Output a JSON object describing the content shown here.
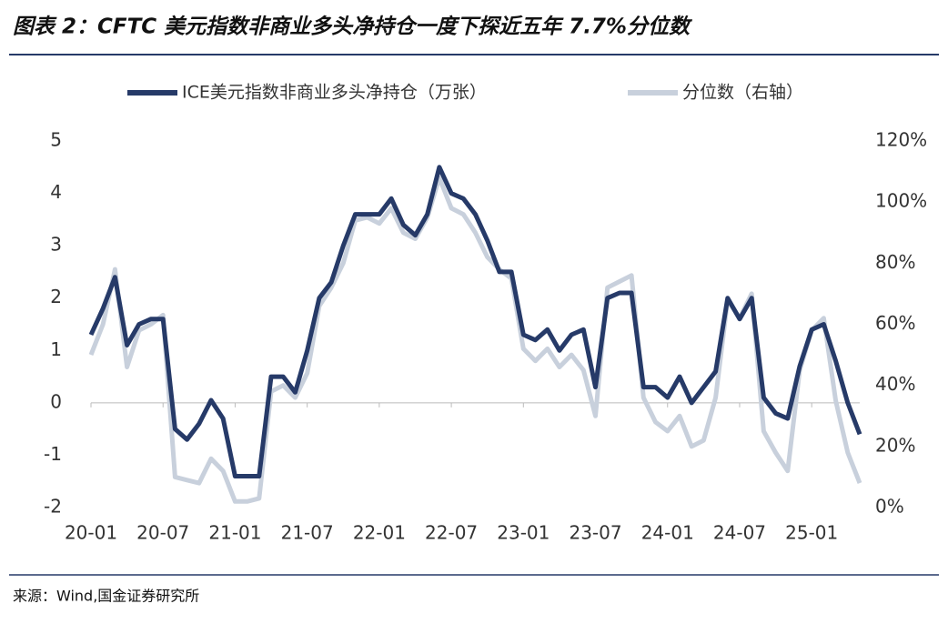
{
  "chart_data": {
    "type": "line",
    "title": "图表 2：CFTC 美元指数非商业多头净持仓一度下探近五年 7.7%分位数",
    "source": "来源：Wind,国金证券研究所",
    "categories": [
      "20-01",
      null,
      null,
      null,
      null,
      null,
      "20-07",
      null,
      null,
      null,
      null,
      null,
      "21-01",
      null,
      null,
      null,
      null,
      null,
      "21-07",
      null,
      null,
      null,
      null,
      null,
      "22-01",
      null,
      null,
      null,
      null,
      null,
      "22-07",
      null,
      null,
      null,
      null,
      null,
      "23-01",
      null,
      null,
      null,
      null,
      null,
      "23-07",
      null,
      null,
      null,
      null,
      null,
      "24-01",
      null,
      null,
      null,
      null,
      null,
      "24-07",
      null,
      null,
      null,
      null,
      null,
      "25-01",
      null,
      null,
      null,
      null
    ],
    "series": [
      {
        "name": "ICE美元指数非商业多头净持仓（万张）",
        "color": "#263a68",
        "values": [
          1.3,
          1.8,
          2.4,
          1.1,
          1.5,
          1.6,
          1.6,
          -0.5,
          -0.7,
          -0.4,
          0.05,
          -0.3,
          -1.4,
          -1.4,
          -1.4,
          0.5,
          0.5,
          0.2,
          1.0,
          2.0,
          2.3,
          3.0,
          3.6,
          3.6,
          3.6,
          3.9,
          3.4,
          3.2,
          3.6,
          4.5,
          4.0,
          3.9,
          3.6,
          3.1,
          2.5,
          2.5,
          1.3,
          1.2,
          1.4,
          1.0,
          1.3,
          1.4,
          0.3,
          2.0,
          2.1,
          2.1,
          0.3,
          0.3,
          0.1,
          0.5,
          0.0,
          0.3,
          0.6,
          2.0,
          1.6,
          2.0,
          0.1,
          -0.2,
          -0.3,
          0.7,
          1.4,
          1.5,
          0.8,
          0.0,
          -0.6
        ]
      },
      {
        "name": "分位数（右轴）",
        "color": "#c8d0dc",
        "axis": "y2",
        "values": [
          50,
          60,
          78,
          46,
          58,
          60,
          63,
          10,
          9,
          8,
          16,
          12,
          2,
          2,
          3,
          38,
          40,
          36,
          44,
          66,
          72,
          80,
          94,
          95,
          93,
          98,
          90,
          88,
          95,
          108,
          98,
          96,
          90,
          82,
          78,
          75,
          52,
          48,
          52,
          46,
          50,
          45,
          30,
          72,
          74,
          76,
          36,
          28,
          25,
          30,
          20,
          22,
          36,
          68,
          62,
          70,
          25,
          18,
          12,
          45,
          58,
          62,
          35,
          18,
          8
        ]
      }
    ],
    "ylim": [
      -2,
      5
    ],
    "yticks": [
      -2,
      -1,
      0,
      1,
      2,
      3,
      4,
      5
    ],
    "y2lim": [
      0,
      120
    ],
    "y2ticks": [
      {
        "value": 0,
        "label": "0%"
      },
      {
        "value": 20,
        "label": "20%"
      },
      {
        "value": 40,
        "label": "40%"
      },
      {
        "value": 60,
        "label": "60%"
      },
      {
        "value": 80,
        "label": "80%"
      },
      {
        "value": 100,
        "label": "100%"
      },
      {
        "value": 120,
        "label": "120%"
      }
    ]
  }
}
